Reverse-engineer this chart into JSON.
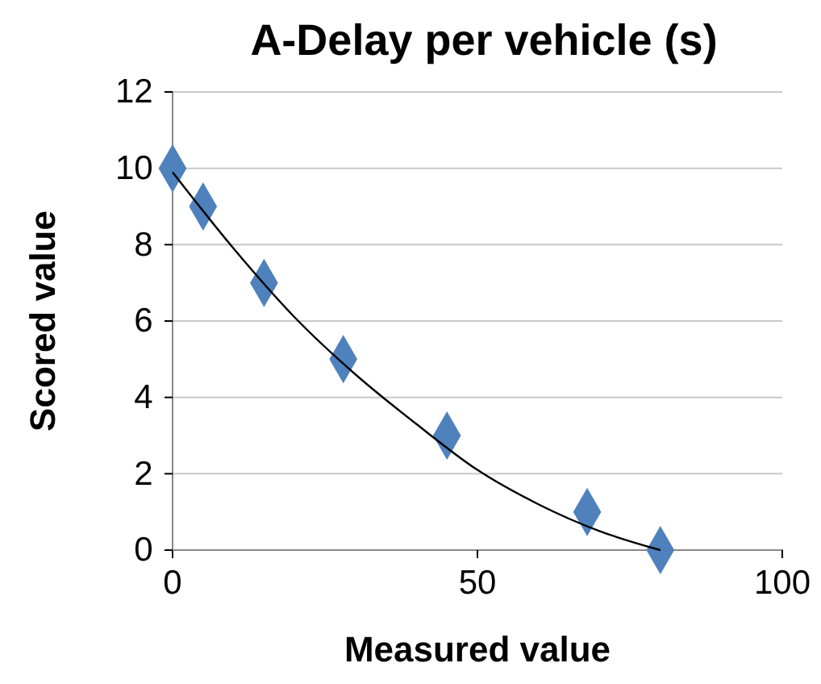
{
  "chart_data": {
    "type": "scatter",
    "title": "A-Delay per vehicle (s)",
    "xlabel": "Measured value",
    "ylabel": "Scored value",
    "series": [
      {
        "color": "#4f81bd",
        "marker": "diamond",
        "x": [
          0,
          5,
          15,
          28,
          45,
          68,
          80
        ],
        "values": [
          10,
          9,
          7,
          5,
          3,
          1,
          0
        ]
      },
      {
        "type": "line",
        "color": "#000000",
        "marker": "none",
        "x": [
          0,
          10,
          20,
          30,
          40,
          50,
          60,
          70,
          80
        ],
        "values": [
          9.9,
          7.9,
          6.1,
          4.6,
          3.3,
          2.1,
          1.2,
          0.5,
          0
        ]
      }
    ],
    "xlim": [
      0,
      100
    ],
    "xticks": [
      0,
      50,
      100
    ],
    "ylim": [
      0,
      12
    ],
    "yticks": [
      0,
      2,
      4,
      6,
      8,
      10,
      12
    ],
    "grid": "y"
  }
}
